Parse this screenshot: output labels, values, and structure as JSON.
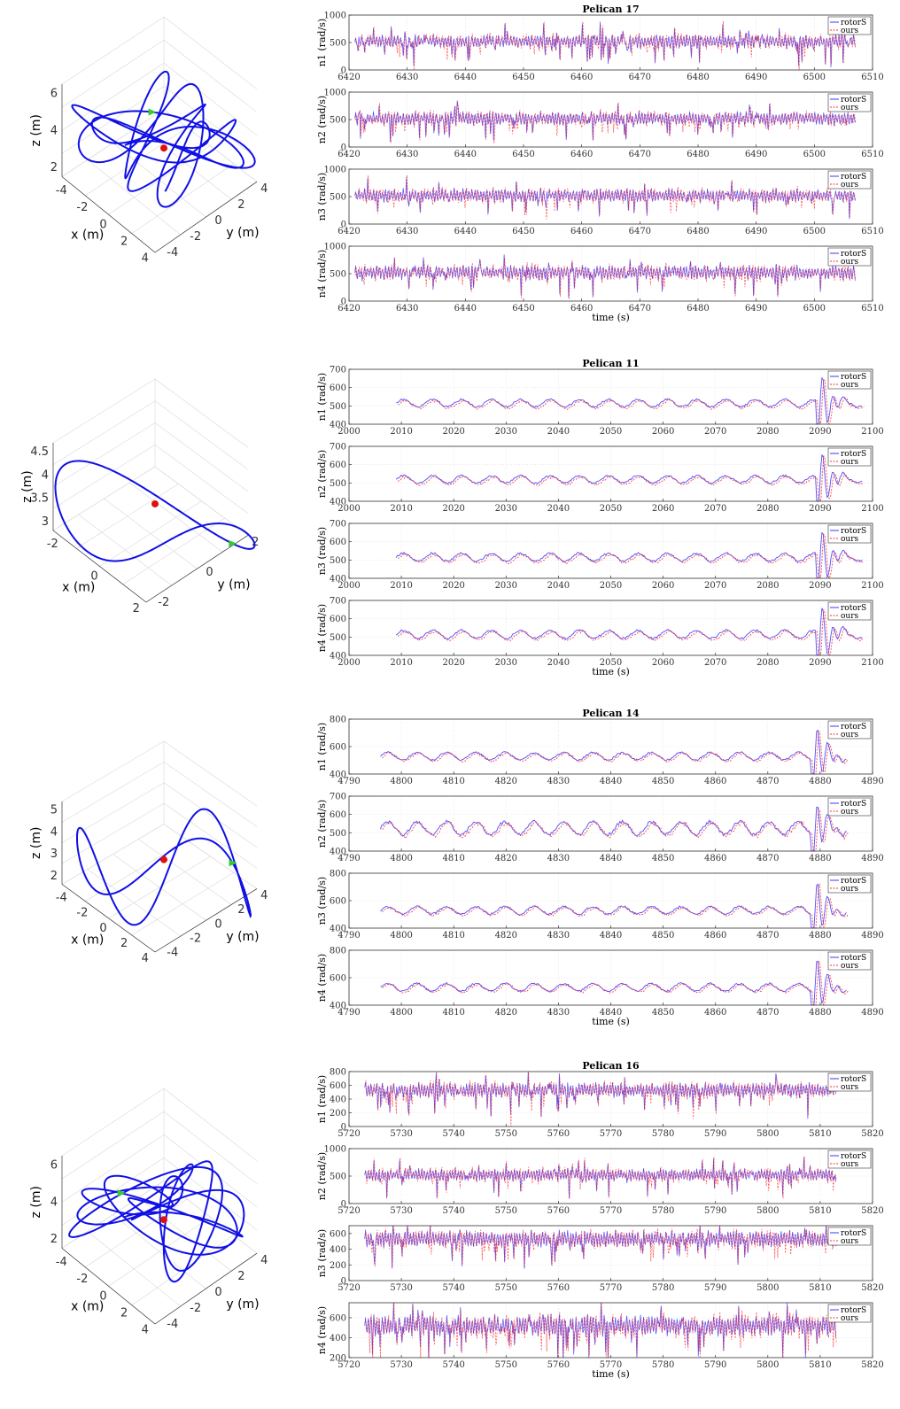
{
  "colors": {
    "rotorS": "#3a3aff",
    "ours": "#ff3333",
    "trajectory": "#1010e6",
    "start_marker": "#33cc33",
    "end_marker": "#dd1111",
    "grid": "#dddddd",
    "axis": "#333333"
  },
  "chart_data": [
    {
      "type": "line",
      "title": "Pelican 17",
      "xlabel": "time (s)",
      "xlim": [
        6420,
        6510
      ],
      "xticks": [
        6420,
        6430,
        6440,
        6450,
        6460,
        6470,
        6480,
        6490,
        6500,
        6510
      ],
      "data_start": 6421,
      "data_end": 6507,
      "legend": [
        "rotorS",
        "ours"
      ],
      "legend_position": "top-right",
      "grid": true,
      "style": "noisy",
      "panels": [
        {
          "ylabel": "n1 (rad/s)",
          "ylim": [
            0,
            1000
          ],
          "yticks": [
            0,
            500,
            1000
          ],
          "base": 520,
          "amp": 140,
          "seed": 11
        },
        {
          "ylabel": "n2 (rad/s)",
          "ylim": [
            0,
            1000
          ],
          "yticks": [
            0,
            500,
            1000
          ],
          "base": 520,
          "amp": 140,
          "seed": 12
        },
        {
          "ylabel": "n3 (rad/s)",
          "ylim": [
            0,
            1000
          ],
          "yticks": [
            0,
            500,
            1000
          ],
          "base": 520,
          "amp": 140,
          "seed": 13
        },
        {
          "ylabel": "n4 (rad/s)",
          "ylim": [
            0,
            1000
          ],
          "yticks": [
            0,
            500,
            1000
          ],
          "base": 520,
          "amp": 150,
          "seed": 14
        }
      ],
      "trajectory": {
        "type": "3d-line",
        "xlabel": "x (m)",
        "ylabel": "y (m)",
        "zlabel": "z (m)",
        "xticks": [
          "-4",
          "-2",
          "0",
          "2",
          "4"
        ],
        "yticks": [
          "-4",
          "-2",
          "0",
          "2",
          "4"
        ],
        "zticks": [
          "2",
          "4",
          "6"
        ],
        "style": "chaotic",
        "seed": 21
      }
    },
    {
      "type": "line",
      "title": "Pelican 11",
      "xlabel": "time (s)",
      "xlim": [
        2000,
        2100
      ],
      "xticks": [
        2000,
        2010,
        2020,
        2030,
        2040,
        2050,
        2060,
        2070,
        2080,
        2090,
        2100
      ],
      "data_start": 2009,
      "data_end": 2098,
      "legend": [
        "rotorS",
        "ours"
      ],
      "legend_position": "top-right",
      "grid": true,
      "style": "smooth",
      "spike_at": 2090,
      "panels": [
        {
          "ylabel": "n1 (rad/s)",
          "ylim": [
            400,
            700
          ],
          "yticks": [
            400,
            500,
            600,
            700
          ],
          "base": 515,
          "amp": 20,
          "seed": 31
        },
        {
          "ylabel": "n2 (rad/s)",
          "ylim": [
            400,
            700
          ],
          "yticks": [
            400,
            500,
            600,
            700
          ],
          "base": 520,
          "amp": 20,
          "seed": 32
        },
        {
          "ylabel": "n3 (rad/s)",
          "ylim": [
            400,
            700
          ],
          "yticks": [
            400,
            500,
            600,
            700
          ],
          "base": 515,
          "amp": 22,
          "seed": 33
        },
        {
          "ylabel": "n4 (rad/s)",
          "ylim": [
            400,
            700
          ],
          "yticks": [
            400,
            500,
            600,
            700
          ],
          "base": 515,
          "amp": 22,
          "seed": 34
        }
      ],
      "trajectory": {
        "type": "3d-line",
        "xlabel": "x (m)",
        "ylabel": "y (m)",
        "zlabel": "z (m)",
        "xticks": [
          "-2",
          "0",
          "2"
        ],
        "yticks": [
          "-2",
          "0",
          "2"
        ],
        "zticks": [
          "3",
          "3.5",
          "4",
          "4.5"
        ],
        "style": "figure-eight",
        "seed": 41
      }
    },
    {
      "type": "line",
      "title": "Pelican 14",
      "xlabel": "time (s)",
      "xlim": [
        4790,
        4890
      ],
      "xticks": [
        4790,
        4800,
        4810,
        4820,
        4830,
        4840,
        4850,
        4860,
        4870,
        4880,
        4890
      ],
      "data_start": 4796,
      "data_end": 4885,
      "legend": [
        "rotorS",
        "ours"
      ],
      "legend_position": "top-right",
      "grid": true,
      "style": "smooth",
      "spike_at": 4879,
      "panels": [
        {
          "ylabel": "n1 (rad/s)",
          "ylim": [
            400,
            800
          ],
          "yticks": [
            400,
            600,
            800
          ],
          "base": 530,
          "amp": 28,
          "seed": 51
        },
        {
          "ylabel": "n2 (rad/s)",
          "ylim": [
            400,
            700
          ],
          "yticks": [
            400,
            500,
            600,
            700
          ],
          "base": 525,
          "amp": 35,
          "seed": 52
        },
        {
          "ylabel": "n3 (rad/s)",
          "ylim": [
            400,
            800
          ],
          "yticks": [
            400,
            600,
            800
          ],
          "base": 530,
          "amp": 28,
          "seed": 53
        },
        {
          "ylabel": "n4 (rad/s)",
          "ylim": [
            400,
            800
          ],
          "yticks": [
            400,
            600,
            800
          ],
          "base": 530,
          "amp": 28,
          "seed": 54
        }
      ],
      "trajectory": {
        "type": "3d-line",
        "xlabel": "x (m)",
        "ylabel": "y (m)",
        "zlabel": "z (m)",
        "xticks": [
          "-4",
          "-2",
          "0",
          "2",
          "4"
        ],
        "yticks": [
          "-4",
          "-2",
          "0",
          "2",
          "4"
        ],
        "zticks": [
          "2",
          "3",
          "4",
          "5"
        ],
        "style": "loops",
        "seed": 61
      }
    },
    {
      "type": "line",
      "title": "Pelican 16",
      "xlabel": "time (s)",
      "xlim": [
        5720,
        5820
      ],
      "xticks": [
        5720,
        5730,
        5740,
        5750,
        5760,
        5770,
        5780,
        5790,
        5800,
        5810,
        5820
      ],
      "data_start": 5723,
      "data_end": 5813,
      "legend": [
        "rotorS",
        "ours"
      ],
      "legend_position": "top-right",
      "grid": true,
      "style": "noisy",
      "panels": [
        {
          "ylabel": "n1 (rad/s)",
          "ylim": [
            0,
            800
          ],
          "yticks": [
            0,
            200,
            400,
            600,
            800
          ],
          "base": 530,
          "amp": 120,
          "seed": 71
        },
        {
          "ylabel": "n2 (rad/s)",
          "ylim": [
            0,
            1000
          ],
          "yticks": [
            0,
            500,
            1000
          ],
          "base": 520,
          "amp": 130,
          "seed": 72
        },
        {
          "ylabel": "n3 (rad/s)",
          "ylim": [
            0,
            700
          ],
          "yticks": [
            0,
            200,
            400,
            600
          ],
          "base": 530,
          "amp": 120,
          "seed": 73
        },
        {
          "ylabel": "n4 (rad/s)",
          "ylim": [
            200,
            750
          ],
          "yticks": [
            200,
            400,
            600
          ],
          "base": 520,
          "amp": 120,
          "seed": 74
        }
      ],
      "trajectory": {
        "type": "3d-line",
        "xlabel": "x (m)",
        "ylabel": "y (m)",
        "zlabel": "z (m)",
        "xticks": [
          "-4",
          "-2",
          "0",
          "2",
          "4"
        ],
        "yticks": [
          "-4",
          "-2",
          "0",
          "2",
          "4"
        ],
        "zticks": [
          "2",
          "4",
          "6"
        ],
        "style": "chaotic",
        "seed": 81
      }
    }
  ]
}
